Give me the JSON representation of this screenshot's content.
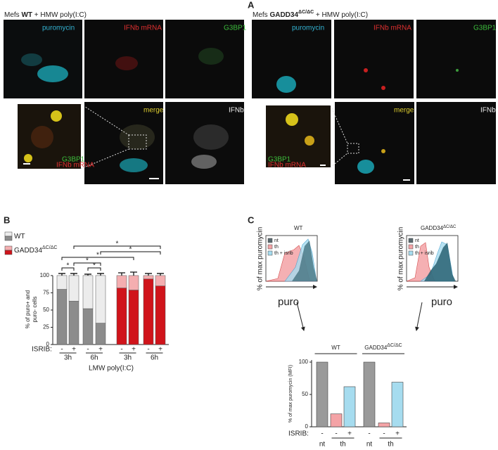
{
  "panel_a": {
    "label": "A",
    "left_title": [
      "Mefs ",
      "WT",
      " + HMW poly(I:C)"
    ],
    "right_title": [
      "Mefs ",
      "GADD34",
      "ΔC/ΔC",
      " + HMW poly(I:C)"
    ],
    "channels": [
      "puromycin",
      "IFNb mRNA",
      "G3BP1",
      "merge",
      "IFNb"
    ]
  },
  "panel_b": {
    "label": "B"
  },
  "panel_c": {
    "label": "C",
    "histograms": [
      {
        "title": "WT",
        "ylabel": "% of max puromycin",
        "xlabel": "puro",
        "legend": [
          "nt",
          "th",
          "th + isrib"
        ],
        "colors": [
          "#5a6a70",
          "#f4a3a6",
          "#a6dcef"
        ]
      },
      {
        "title": [
          "GADD34",
          "ΔC/ΔC"
        ],
        "ylabel": "% of max puromycin",
        "xlabel": "puro",
        "legend": [
          "nt",
          "th",
          "th + isrib"
        ],
        "colors": [
          "#5a6a70",
          "#f4a3a6",
          "#a6dcef"
        ]
      }
    ]
  },
  "chart_data": [
    {
      "type": "stacked-bar",
      "ylabel": [
        "% of puro+ and",
        "puro- cells"
      ],
      "categories": [
        "-",
        "+",
        "-",
        "+",
        "-",
        "+",
        "-",
        "+"
      ],
      "groups": [
        "3h",
        "6h",
        "3h",
        "6h"
      ],
      "group_prefix": "ISRIB:",
      "xlabel": "LMW poly(I:C)",
      "series": [
        {
          "colors": [
            "#8c8c8c",
            "#8c8c8c",
            "#8c8c8c",
            "#8c8c8c",
            "#d0141b",
            "#d0141b",
            "#d0141b",
            "#d0141b"
          ],
          "values": [
            80,
            63,
            52,
            31,
            82,
            79,
            95,
            85
          ],
          "errors": [
            3,
            3,
            2,
            3,
            4,
            5,
            3,
            3
          ]
        },
        {
          "colors": [
            "#ececec",
            "#ececec",
            "#ececec",
            "#ececec",
            "#f4aeb0",
            "#f4aeb0",
            "#f4aeb0",
            "#f4aeb0"
          ],
          "values": [
            20,
            37,
            48,
            69,
            18,
            21,
            5,
            15
          ],
          "errors": [
            3,
            3,
            2,
            3,
            4,
            5,
            3,
            3
          ]
        }
      ],
      "legend": [
        {
          "label": [
            "WT"
          ]
        },
        {
          "label": [
            "GADD34",
            "ΔC/ΔC"
          ]
        }
      ],
      "annotations": [
        "*",
        "*",
        "*",
        "*",
        "*",
        "*"
      ],
      "ylim": [
        0,
        105
      ],
      "yticks": [
        0,
        25,
        50,
        75,
        100
      ]
    },
    {
      "type": "bar",
      "ylabel": "% of max puromycin (MFI)",
      "categories": [
        "-",
        "-",
        "+",
        "-",
        "-",
        "+"
      ],
      "values": [
        100,
        20,
        62,
        100,
        6,
        69
      ],
      "colors": [
        "#9a9a9a",
        "#f4a3a6",
        "#a6dcef",
        "#9a9a9a",
        "#f4a3a6",
        "#a6dcef"
      ],
      "groups": [
        {
          "label": [
            "WT"
          ]
        },
        {
          "label": [
            "GADD34",
            "ΔC/ΔC"
          ]
        }
      ],
      "treatments": [
        "nt",
        "th",
        "nt",
        "th"
      ],
      "prefix": "ISRIB:",
      "ylim": [
        0,
        105
      ],
      "yticks": [
        0,
        50,
        100
      ]
    }
  ]
}
